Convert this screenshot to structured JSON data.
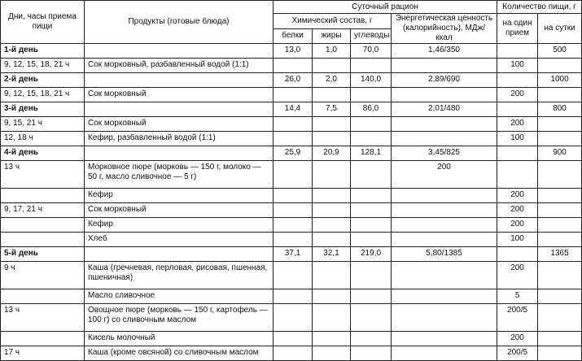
{
  "header": {
    "col_time": "Дни, часы приема пищи",
    "col_products": "Продукты (готовые блюда)",
    "daily_ration": "Суточный рацион",
    "chem": "Химический состав, г",
    "proteins": "белки",
    "fats": "жиры",
    "carbs": "углеводы",
    "energy": "Энергетическая ценность (калорийность), МДж/ ккал",
    "amount": "Количество пищи, г",
    "per_meal": "на один прием",
    "per_day": "на сутки"
  },
  "rows": [
    {
      "day": true,
      "time": "1-й день",
      "product": "",
      "b": "13,0",
      "z": "1,0",
      "u": "70,0",
      "e": "1,46/350",
      "one": "",
      "sum": "500"
    },
    {
      "time": "9, 12, 15, 18, 21 ч",
      "product": "Сок морковный, разбавленный водой (1:1)",
      "b": "",
      "z": "",
      "u": "",
      "e": "",
      "one": "100",
      "sum": ""
    },
    {
      "day": true,
      "time": "2-й день",
      "product": "",
      "b": "26,0",
      "z": "2,0",
      "u": "140,0",
      "e": "2,89/690",
      "one": "",
      "sum": "1000"
    },
    {
      "time": "9, 12, 15, 18, 21 ч",
      "product": "Сок морковный",
      "b": "",
      "z": "",
      "u": "",
      "e": "",
      "one": "200",
      "sum": ""
    },
    {
      "day": true,
      "time": "3-й день",
      "product": "",
      "b": "14,4",
      "z": "7,5",
      "u": "86,0",
      "e": "2,01/480",
      "one": "",
      "sum": "800"
    },
    {
      "time": "9, 15, 21 ч",
      "product": "Сок морковный",
      "b": "",
      "z": "",
      "u": "",
      "e": "",
      "one": "200",
      "sum": ""
    },
    {
      "time": "12, 18 ч",
      "product": "Кефир, разбавленный водой (1:1)",
      "b": "",
      "z": "",
      "u": "",
      "e": "",
      "one": "100",
      "sum": ""
    },
    {
      "day": true,
      "time": "4-й день",
      "product": "",
      "b": "25,9",
      "z": "20,9",
      "u": "128,1",
      "e": "3,45/825",
      "one": "",
      "sum": "900"
    },
    {
      "dbl": true,
      "time": "13 ч",
      "product": "Морковное пюре (морковь — 150 г, молоко — 50 г, масло сливочное — 5 г)",
      "b": "",
      "z": "",
      "u": "",
      "e": "200",
      "one": "",
      "sum": ""
    },
    {
      "time": "",
      "product": "Кефир",
      "b": "",
      "z": "",
      "u": "",
      "e": "",
      "one": "200",
      "sum": ""
    },
    {
      "time": "9, 17, 21 ч",
      "product": "Сок морковный",
      "b": "",
      "z": "",
      "u": "",
      "e": "",
      "one": "200",
      "sum": ""
    },
    {
      "time": "",
      "product": "Кефир",
      "b": "",
      "z": "",
      "u": "",
      "e": "",
      "one": "200",
      "sum": ""
    },
    {
      "time": "",
      "product": "Хлеб",
      "b": "",
      "z": "",
      "u": "",
      "e": "",
      "one": "100",
      "sum": ""
    },
    {
      "day": true,
      "time": "5-й день",
      "product": "",
      "b": "37,1",
      "z": "32,1",
      "u": "219,0",
      "e": "5,80/1385",
      "one": "",
      "sum": "1365"
    },
    {
      "dbl": true,
      "time": "9 ч",
      "product": "Каша (гречневая, перловая, рисовая, пшенная, пшеничная)",
      "b": "",
      "z": "",
      "u": "",
      "e": "",
      "one": "200",
      "sum": ""
    },
    {
      "time": "",
      "product": "Масло сливочное",
      "b": "",
      "z": "",
      "u": "",
      "e": "",
      "one": "5",
      "sum": ""
    },
    {
      "dbl": true,
      "time": "13 ч",
      "product": "Овощное пюре (морковь — 150 г, картофель — 100 г) со сливочным маслом",
      "b": "",
      "z": "",
      "u": "",
      "e": "",
      "one": "200/5",
      "sum": ""
    },
    {
      "time": "",
      "product": "Кисель молочный",
      "b": "",
      "z": "",
      "u": "",
      "e": "",
      "one": "200",
      "sum": ""
    },
    {
      "time": "17 ч",
      "product": "Каша (кроме овсяной) со сливочным маслом",
      "b": "",
      "z": "",
      "u": "",
      "e": "",
      "one": "200/5",
      "sum": ""
    }
  ]
}
